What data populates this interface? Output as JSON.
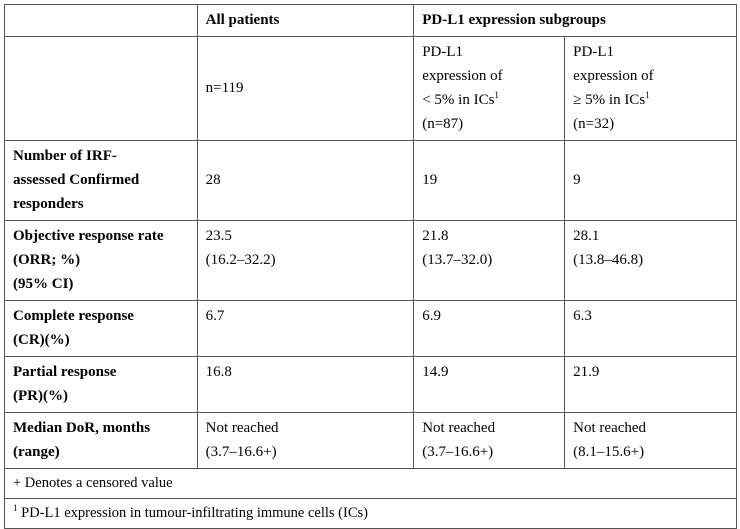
{
  "header": {
    "all_patients": "All patients",
    "pdl1_subgroups": "PD-L1 expression subgroups"
  },
  "subheader": {
    "all_n": "n=119",
    "low": {
      "line1": "PD-L1",
      "line2": "expression of",
      "line3_text": "< 5% in ICs",
      "line3_sup": "1",
      "line4": "(n=87)"
    },
    "high": {
      "line1": "PD-L1",
      "line2": "expression of",
      "line3_text": "≥ 5% in ICs",
      "line3_sup": "1",
      "line4": "(n=32)"
    }
  },
  "rows": [
    {
      "label_lines": [
        "Number of IRF-",
        "assessed Confirmed",
        "responders"
      ],
      "all": [
        "28"
      ],
      "low": [
        "19"
      ],
      "high": [
        "9"
      ]
    },
    {
      "label_lines": [
        "Objective response rate",
        "(ORR; %)",
        "(95% CI)"
      ],
      "all": [
        "23.5",
        "(16.2–32.2)"
      ],
      "low": [
        "21.8",
        "(13.7–32.0)"
      ],
      "high": [
        "28.1",
        "(13.8–46.8)"
      ]
    },
    {
      "label_lines": [
        "Complete response",
        "(CR)(%)"
      ],
      "all": [
        "6.7"
      ],
      "low": [
        "6.9"
      ],
      "high": [
        "6.3"
      ]
    },
    {
      "label_lines": [
        "Partial response",
        "(PR)(%)"
      ],
      "all": [
        "16.8"
      ],
      "low": [
        "14.9"
      ],
      "high": [
        "21.9"
      ]
    },
    {
      "label_lines": [
        "Median DoR, months",
        "(range)"
      ],
      "all": [
        "Not reached",
        "(3.7–16.6+)"
      ],
      "low": [
        "Not reached",
        "(3.7–16.6+)"
      ],
      "high": [
        "Not reached",
        "(8.1–15.6+)"
      ]
    }
  ],
  "footnotes": {
    "censored": "+ Denotes a censored value",
    "note1_sup": "1",
    "note1_text": " PD-L1 expression in tumour-infiltrating immune cells (ICs)"
  }
}
